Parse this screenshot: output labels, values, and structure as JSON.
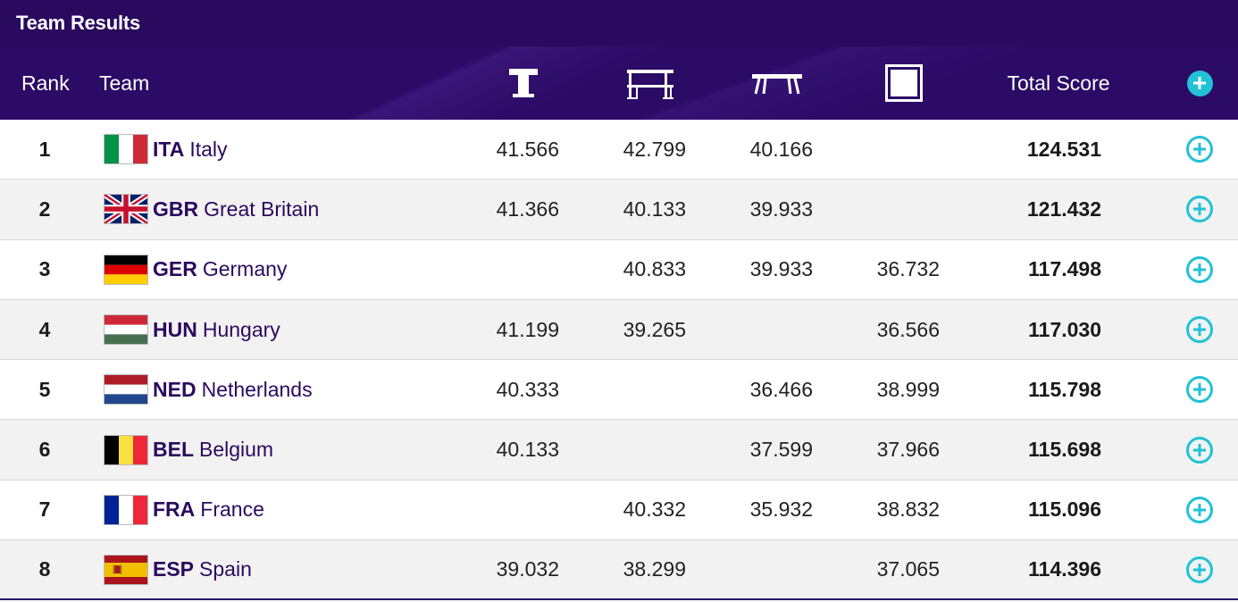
{
  "title": "Team Results",
  "header": {
    "rank": "Rank",
    "team": "Team",
    "total": "Total Score",
    "apparatus_icons": [
      "vault-icon",
      "uneven-bars-icon",
      "balance-beam-icon",
      "floor-exercise-icon"
    ]
  },
  "colors": {
    "title_bg": "#2a0a5e",
    "header_bg": "#2b0b66",
    "accent": "#22c1d6",
    "team_text": "#2a0a5e"
  },
  "rows": [
    {
      "rank": "1",
      "code": "ITA",
      "country": "Italy",
      "flag": "flag-italy-icon",
      "vault": "41.566",
      "bars": "42.799",
      "beam": "40.166",
      "floor": "",
      "total": "124.531"
    },
    {
      "rank": "2",
      "code": "GBR",
      "country": "Great Britain",
      "flag": "flag-great-britain-icon",
      "vault": "41.366",
      "bars": "40.133",
      "beam": "39.933",
      "floor": "",
      "total": "121.432"
    },
    {
      "rank": "3",
      "code": "GER",
      "country": "Germany",
      "flag": "flag-germany-icon",
      "vault": "",
      "bars": "40.833",
      "beam": "39.933",
      "floor": "36.732",
      "total": "117.498"
    },
    {
      "rank": "4",
      "code": "HUN",
      "country": "Hungary",
      "flag": "flag-hungary-icon",
      "vault": "41.199",
      "bars": "39.265",
      "beam": "",
      "floor": "36.566",
      "total": "117.030"
    },
    {
      "rank": "5",
      "code": "NED",
      "country": "Netherlands",
      "flag": "flag-netherlands-icon",
      "vault": "40.333",
      "bars": "",
      "beam": "36.466",
      "floor": "38.999",
      "total": "115.798"
    },
    {
      "rank": "6",
      "code": "BEL",
      "country": "Belgium",
      "flag": "flag-belgium-icon",
      "vault": "40.133",
      "bars": "",
      "beam": "37.599",
      "floor": "37.966",
      "total": "115.698"
    },
    {
      "rank": "7",
      "code": "FRA",
      "country": "France",
      "flag": "flag-france-icon",
      "vault": "",
      "bars": "40.332",
      "beam": "35.932",
      "floor": "38.832",
      "total": "115.096"
    },
    {
      "rank": "8",
      "code": "ESP",
      "country": "Spain",
      "flag": "flag-spain-icon",
      "vault": "39.032",
      "bars": "38.299",
      "beam": "",
      "floor": "37.065",
      "total": "114.396"
    }
  ]
}
